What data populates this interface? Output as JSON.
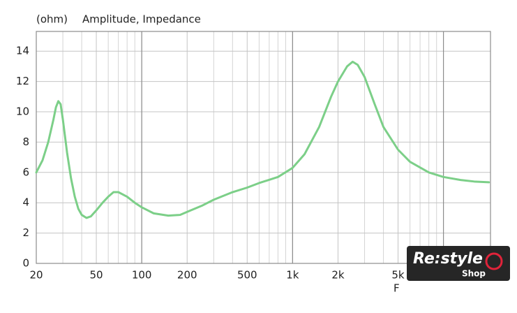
{
  "chart_data": {
    "type": "line",
    "title": "Amplitude, Impedance",
    "y_label": "(ohm)",
    "x_label": "F",
    "x_scale": "log",
    "xlim": [
      20,
      20500
    ],
    "ylim": [
      0,
      15.3
    ],
    "xticks": [
      20,
      50,
      100,
      200,
      500,
      {
        "value": 1000,
        "label": "1k"
      },
      {
        "value": 2000,
        "label": "2k"
      },
      {
        "value": 5000,
        "label": "5k"
      }
    ],
    "xgrid_major": [
      100,
      1000,
      10000
    ],
    "xgrid_minor": [
      30,
      40,
      60,
      70,
      80,
      90,
      300,
      400,
      600,
      700,
      800,
      900,
      3000,
      4000,
      6000,
      7000,
      8000,
      9000
    ],
    "yticks": [
      0,
      2,
      4,
      6,
      8,
      10,
      12,
      14
    ],
    "grid": true,
    "series": [
      {
        "name": "Impedance",
        "color": "#7ccf88",
        "x": [
          20,
          22,
          24,
          26,
          27,
          28,
          29,
          30,
          32,
          34,
          36,
          38,
          40,
          43,
          46,
          50,
          55,
          60,
          65,
          70,
          80,
          90,
          100,
          120,
          150,
          180,
          200,
          250,
          300,
          400,
          500,
          600,
          800,
          1000,
          1200,
          1500,
          1800,
          2000,
          2300,
          2500,
          2700,
          3000,
          3500,
          4000,
          5000,
          6000,
          8000,
          10000,
          13000,
          16000,
          20000
        ],
        "values": [
          6.0,
          6.8,
          8.0,
          9.5,
          10.3,
          10.7,
          10.5,
          9.5,
          7.3,
          5.6,
          4.4,
          3.6,
          3.2,
          3.0,
          3.1,
          3.5,
          4.0,
          4.4,
          4.7,
          4.7,
          4.4,
          4.0,
          3.7,
          3.3,
          3.15,
          3.2,
          3.4,
          3.8,
          4.2,
          4.7,
          5.0,
          5.3,
          5.7,
          6.3,
          7.2,
          9.0,
          11.0,
          12.0,
          13.0,
          13.3,
          13.1,
          12.3,
          10.5,
          9.0,
          7.5,
          6.7,
          6.0,
          5.7,
          5.5,
          5.4,
          5.35
        ]
      }
    ]
  },
  "logo": {
    "text": "Re:style",
    "sub": "Shop"
  }
}
